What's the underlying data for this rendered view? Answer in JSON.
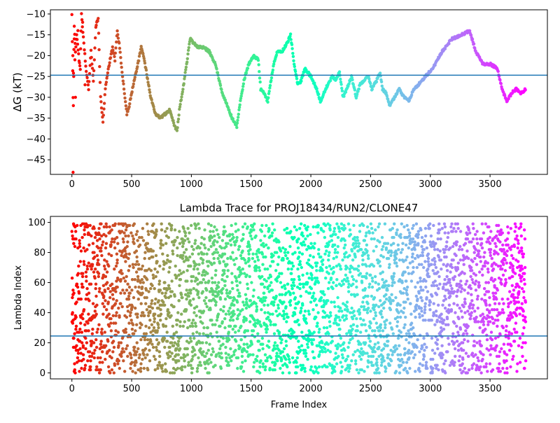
{
  "chart_data": [
    {
      "type": "scatter",
      "title": "",
      "xlabel": "",
      "ylabel": "ΔG (kT)",
      "xlim": [
        -180,
        3980
      ],
      "ylim": [
        -48.5,
        -9
      ],
      "xticks": [
        0,
        500,
        1000,
        1500,
        2000,
        2500,
        3000,
        3500
      ],
      "yticks": [
        -45,
        -40,
        -35,
        -30,
        -25,
        -20,
        -15,
        -10
      ],
      "colormap": "rainbow (reversed over frame index: red at 0, violet at end)",
      "hline": -24.7,
      "hline_color": "#1f77b4",
      "grid": false,
      "trace_points": [
        [
          0,
          -10
        ],
        [
          10,
          -30
        ],
        [
          20,
          -13
        ],
        [
          30,
          -19
        ],
        [
          40,
          -15
        ],
        [
          60,
          -21
        ],
        [
          70,
          -23
        ],
        [
          80,
          -10
        ],
        [
          100,
          -17
        ],
        [
          120,
          -24
        ],
        [
          140,
          -28
        ],
        [
          160,
          -19
        ],
        [
          180,
          -26
        ],
        [
          200,
          -13
        ],
        [
          220,
          -11
        ],
        [
          240,
          -30
        ],
        [
          260,
          -36
        ],
        [
          280,
          -28
        ],
        [
          300,
          -24
        ],
        [
          320,
          -21
        ],
        [
          340,
          -18
        ],
        [
          360,
          -21
        ],
        [
          380,
          -14
        ],
        [
          400,
          -18
        ],
        [
          420,
          -24
        ],
        [
          440,
          -29
        ],
        [
          460,
          -34
        ],
        [
          480,
          -32
        ],
        [
          520,
          -26
        ],
        [
          560,
          -21
        ],
        [
          580,
          -18
        ],
        [
          600,
          -20
        ],
        [
          630,
          -25
        ],
        [
          660,
          -30
        ],
        [
          700,
          -34
        ],
        [
          740,
          -35
        ],
        [
          780,
          -34
        ],
        [
          820,
          -33
        ],
        [
          860,
          -37
        ],
        [
          880,
          -38
        ],
        [
          900,
          -33
        ],
        [
          930,
          -28
        ],
        [
          960,
          -22
        ],
        [
          990,
          -16
        ],
        [
          1020,
          -17
        ],
        [
          1060,
          -18
        ],
        [
          1100,
          -18
        ],
        [
          1150,
          -19
        ],
        [
          1200,
          -22
        ],
        [
          1260,
          -29
        ],
        [
          1300,
          -32
        ],
        [
          1340,
          -35
        ],
        [
          1380,
          -37
        ],
        [
          1410,
          -31
        ],
        [
          1440,
          -26
        ],
        [
          1480,
          -22
        ],
        [
          1520,
          -20
        ],
        [
          1560,
          -21
        ],
        [
          1580,
          -28
        ],
        [
          1610,
          -29
        ],
        [
          1640,
          -31
        ],
        [
          1660,
          -27
        ],
        [
          1690,
          -22
        ],
        [
          1720,
          -19
        ],
        [
          1760,
          -19
        ],
        [
          1800,
          -17
        ],
        [
          1830,
          -15
        ],
        [
          1860,
          -22
        ],
        [
          1890,
          -27
        ],
        [
          1920,
          -26
        ],
        [
          1950,
          -23
        ],
        [
          2000,
          -25
        ],
        [
          2050,
          -28
        ],
        [
          2080,
          -31
        ],
        [
          2110,
          -29
        ],
        [
          2140,
          -27
        ],
        [
          2180,
          -25
        ],
        [
          2210,
          -26
        ],
        [
          2240,
          -24
        ],
        [
          2270,
          -30
        ],
        [
          2300,
          -28
        ],
        [
          2340,
          -25
        ],
        [
          2380,
          -30
        ],
        [
          2410,
          -27
        ],
        [
          2440,
          -26
        ],
        [
          2480,
          -25
        ],
        [
          2510,
          -28
        ],
        [
          2550,
          -26
        ],
        [
          2580,
          -24
        ],
        [
          2600,
          -28
        ],
        [
          2630,
          -29
        ],
        [
          2660,
          -32
        ],
        [
          2700,
          -30
        ],
        [
          2740,
          -28
        ],
        [
          2780,
          -30
        ],
        [
          2820,
          -31
        ],
        [
          2860,
          -28
        ],
        [
          2900,
          -27
        ],
        [
          2960,
          -25
        ],
        [
          3020,
          -23
        ],
        [
          3100,
          -19
        ],
        [
          3180,
          -16
        ],
        [
          3260,
          -15
        ],
        [
          3330,
          -14
        ],
        [
          3380,
          -19
        ],
        [
          3440,
          -22
        ],
        [
          3500,
          -22
        ],
        [
          3560,
          -23
        ],
        [
          3600,
          -28
        ],
        [
          3640,
          -31
        ],
        [
          3680,
          -29
        ],
        [
          3720,
          -28
        ],
        [
          3760,
          -29
        ],
        [
          3800,
          -28
        ]
      ],
      "extra_points": [
        [
          10,
          -48
        ],
        [
          8,
          -20
        ],
        [
          12,
          -32
        ],
        [
          15,
          -25
        ],
        [
          30,
          -30
        ],
        [
          20,
          -16
        ],
        [
          25,
          -21
        ],
        [
          50,
          -14
        ],
        [
          90,
          -12
        ],
        [
          110,
          -27
        ]
      ]
    },
    {
      "type": "scatter",
      "title": "Lambda Trace for PROJ18434/RUN2/CLONE47",
      "xlabel": "Frame Index",
      "ylabel": "Lambda Index",
      "xlim": [
        -180,
        3980
      ],
      "ylim": [
        -4,
        104
      ],
      "xticks": [
        0,
        500,
        1000,
        1500,
        2000,
        2500,
        3000,
        3500
      ],
      "yticks": [
        0,
        20,
        40,
        60,
        80,
        100
      ],
      "colormap": "rainbow (reversed over frame index: red at 0, violet at end)",
      "hline": 24.5,
      "hline_color": "#1f77b4",
      "grid": false,
      "point_count": 3800,
      "value_range": [
        0,
        99
      ]
    }
  ]
}
